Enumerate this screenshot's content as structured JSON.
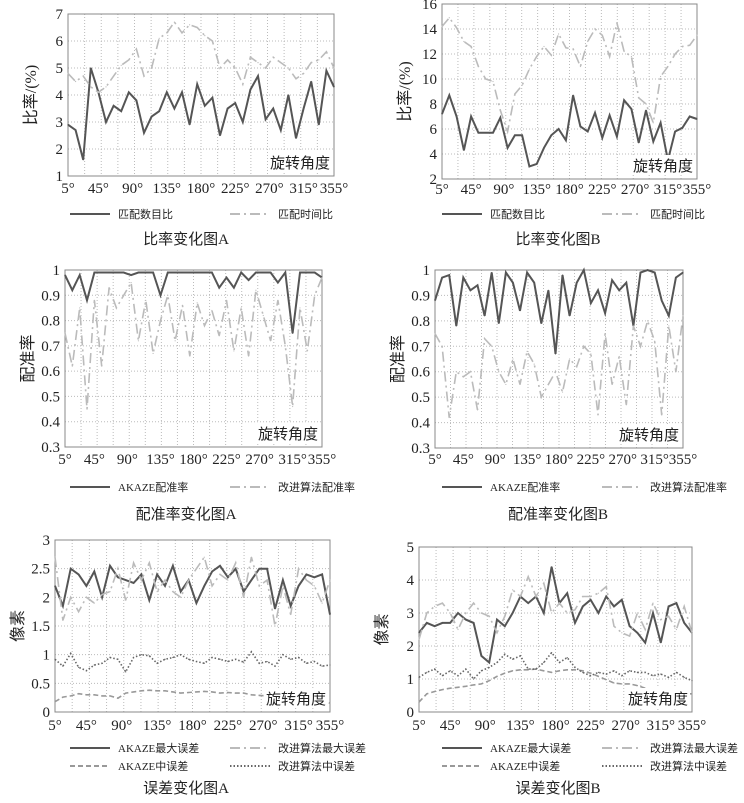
{
  "chart_data": [
    {
      "type": "line",
      "title": "比率变化图A",
      "ylabel": "比率/(%)",
      "annotation": "旋转角度",
      "ylim": [
        1,
        7
      ],
      "yticks": [
        "1",
        "2",
        "3",
        "4",
        "5",
        "6",
        "7"
      ],
      "xlim": [
        5,
        355
      ],
      "xticks": [
        {
          "v": 5,
          "label": "5°"
        },
        {
          "v": 45,
          "label": "45°"
        },
        {
          "v": 90,
          "label": "90°"
        },
        {
          "v": 135,
          "label": "135°"
        },
        {
          "v": 180,
          "label": "180°"
        },
        {
          "v": 225,
          "label": "225°"
        },
        {
          "v": 270,
          "label": "270°"
        },
        {
          "v": 315,
          "label": "315°"
        },
        {
          "v": 355,
          "label": "355°"
        }
      ],
      "x_step": 10,
      "grid": true,
      "legend_placement": "bottom",
      "series": [
        {
          "name": "匹配数目比",
          "style": "solid",
          "color": "#555555",
          "values": [
            2.9,
            2.7,
            1.6,
            5.0,
            4.1,
            3.0,
            3.6,
            3.4,
            4.1,
            3.8,
            2.6,
            3.2,
            3.4,
            4.1,
            3.5,
            4.1,
            2.9,
            4.4,
            3.6,
            3.9,
            2.5,
            3.5,
            3.7,
            3.0,
            4.2,
            4.7,
            3.1,
            3.5,
            2.7,
            4.0,
            2.4,
            3.5,
            4.5,
            2.9,
            4.9,
            4.3
          ]
        },
        {
          "name": "匹配时间比",
          "style": "dashdot",
          "color": "#bbbbbb",
          "values": [
            4.8,
            4.5,
            4.7,
            4.3,
            4.1,
            4.3,
            4.7,
            5.1,
            5.3,
            5.7,
            4.7,
            5.0,
            6.1,
            6.3,
            6.7,
            6.3,
            6.6,
            6.5,
            6.2,
            6.0,
            5.0,
            5.3,
            5.0,
            4.4,
            5.4,
            5.2,
            5.0,
            5.4,
            5.2,
            5.0,
            4.6,
            4.8,
            5.2,
            5.3,
            5.6,
            5.0
          ]
        }
      ]
    },
    {
      "type": "line",
      "title": "比率变化图B",
      "ylabel": "比率/(%)",
      "annotation": "旋转角度",
      "ylim": [
        2,
        16
      ],
      "yticks": [
        "2",
        "4",
        "6",
        "8",
        "10",
        "12",
        "14",
        "16"
      ],
      "xlim": [
        5,
        355
      ],
      "xticks": [
        {
          "v": 5,
          "label": "5°"
        },
        {
          "v": 45,
          "label": "45°"
        },
        {
          "v": 90,
          "label": "90°"
        },
        {
          "v": 135,
          "label": "135°"
        },
        {
          "v": 180,
          "label": "180°"
        },
        {
          "v": 225,
          "label": "225°"
        },
        {
          "v": 270,
          "label": "270°"
        },
        {
          "v": 315,
          "label": "315°"
        },
        {
          "v": 355,
          "label": "355°"
        }
      ],
      "x_step": 10,
      "grid": true,
      "legend_placement": "bottom",
      "series": [
        {
          "name": "匹配数目比",
          "style": "solid",
          "color": "#555555",
          "values": [
            7.2,
            8.7,
            7.0,
            4.3,
            7.0,
            5.7,
            5.7,
            5.7,
            6.9,
            4.5,
            5.5,
            5.5,
            3.0,
            3.2,
            4.5,
            5.5,
            6.0,
            5.1,
            8.7,
            6.2,
            5.8,
            7.3,
            5.3,
            7.1,
            5.4,
            8.3,
            7.6,
            4.9,
            7.5,
            5.0,
            6.5,
            3.5,
            5.8,
            6.1,
            7.0,
            6.8
          ]
        },
        {
          "name": "匹配时间比",
          "style": "dashdot",
          "color": "#bbbbbb",
          "values": [
            14.2,
            14.9,
            14.1,
            13.0,
            12.6,
            11.0,
            10.0,
            9.8,
            7.5,
            5.8,
            8.8,
            9.5,
            10.8,
            11.8,
            12.6,
            11.9,
            13.6,
            12.5,
            12.4,
            11.0,
            13.0,
            14.0,
            13.5,
            11.8,
            14.5,
            12.2,
            11.8,
            8.5,
            8.0,
            6.5,
            10.2,
            11.0,
            12.0,
            12.6,
            12.7,
            13.5
          ]
        }
      ]
    },
    {
      "type": "line",
      "title": "配准率变化图A",
      "ylabel": "配准率",
      "annotation": "旋转角度",
      "ylim": [
        0.3,
        1
      ],
      "yticks": [
        "0.3",
        "0.4",
        "0.5",
        "0.6",
        "0.7",
        "0.8",
        "0.9",
        "1"
      ],
      "xlim": [
        5,
        355
      ],
      "xticks": [
        {
          "v": 5,
          "label": "5°"
        },
        {
          "v": 45,
          "label": "45°"
        },
        {
          "v": 90,
          "label": "90°"
        },
        {
          "v": 135,
          "label": "135°"
        },
        {
          "v": 180,
          "label": "180°"
        },
        {
          "v": 225,
          "label": "225°"
        },
        {
          "v": 270,
          "label": "270°"
        },
        {
          "v": 315,
          "label": "315°"
        },
        {
          "v": 355,
          "label": "355°"
        }
      ],
      "x_step": 10,
      "grid": true,
      "legend_placement": "bottom",
      "series": [
        {
          "name": "AKAZE配准率",
          "style": "solid",
          "color": "#555555",
          "values": [
            0.98,
            0.92,
            0.98,
            0.88,
            0.99,
            0.99,
            0.99,
            0.99,
            0.99,
            0.98,
            0.99,
            0.99,
            0.99,
            0.9,
            0.99,
            0.99,
            0.99,
            0.99,
            0.99,
            0.99,
            0.99,
            0.93,
            0.97,
            0.93,
            0.99,
            0.96,
            0.99,
            0.99,
            0.99,
            0.95,
            0.99,
            0.75,
            0.99,
            0.99,
            0.99,
            0.97
          ]
        },
        {
          "name": "改进算法配准率",
          "style": "dashdot",
          "color": "#bbbbbb",
          "values": [
            0.75,
            0.62,
            0.85,
            0.45,
            0.88,
            0.62,
            0.93,
            0.85,
            0.9,
            0.95,
            0.72,
            0.88,
            0.67,
            0.8,
            0.9,
            0.72,
            0.86,
            0.66,
            0.87,
            0.78,
            0.84,
            0.74,
            0.88,
            0.68,
            0.85,
            0.66,
            0.92,
            0.82,
            0.72,
            0.88,
            0.7,
            0.46,
            0.85,
            0.68,
            0.9,
            0.97
          ]
        }
      ]
    },
    {
      "type": "line",
      "title": "配准率变化图B",
      "ylabel": "配准率",
      "annotation": "旋转角度",
      "ylim": [
        0.3,
        1
      ],
      "yticks": [
        "0.3",
        "0.4",
        "0.5",
        "0.6",
        "0.7",
        "0.8",
        "0.9",
        "1"
      ],
      "xlim": [
        5,
        355
      ],
      "xticks": [
        {
          "v": 5,
          "label": "5°"
        },
        {
          "v": 45,
          "label": "45°"
        },
        {
          "v": 90,
          "label": "90°"
        },
        {
          "v": 135,
          "label": "135°"
        },
        {
          "v": 180,
          "label": "180°"
        },
        {
          "v": 225,
          "label": "225°"
        },
        {
          "v": 270,
          "label": "270°"
        },
        {
          "v": 315,
          "label": "315°"
        },
        {
          "v": 355,
          "label": "355°"
        }
      ],
      "x_step": 10,
      "grid": true,
      "legend_placement": "bottom",
      "series": [
        {
          "name": "AKAZE配准率",
          "style": "solid",
          "color": "#555555",
          "values": [
            0.88,
            0.97,
            0.98,
            0.78,
            0.97,
            0.92,
            0.94,
            0.82,
            0.99,
            0.79,
            0.99,
            0.95,
            0.84,
            0.99,
            0.95,
            0.79,
            0.92,
            0.67,
            0.98,
            0.82,
            0.95,
            1.0,
            0.87,
            0.92,
            0.83,
            0.96,
            0.92,
            0.95,
            0.78,
            0.99,
            1.0,
            0.99,
            0.88,
            0.82,
            0.97,
            0.99
          ]
        },
        {
          "name": "改进算法配准率",
          "style": "dashdot",
          "color": "#bbbbbb",
          "values": [
            0.75,
            0.7,
            0.42,
            0.6,
            0.58,
            0.6,
            0.45,
            0.73,
            0.7,
            0.6,
            0.55,
            0.65,
            0.55,
            0.68,
            0.63,
            0.5,
            0.55,
            0.6,
            0.52,
            0.65,
            0.62,
            0.7,
            0.67,
            0.43,
            0.75,
            0.55,
            0.66,
            0.47,
            0.78,
            0.7,
            0.8,
            0.72,
            0.43,
            0.78,
            0.6,
            0.82
          ]
        }
      ]
    },
    {
      "type": "line",
      "title": "误差变化图A",
      "ylabel": "像素",
      "annotation": "旋转角度",
      "ylim": [
        0,
        3
      ],
      "yticks": [
        "0",
        "0.5",
        "1",
        "1.5",
        "2",
        "2.5",
        "3"
      ],
      "xlim": [
        5,
        355
      ],
      "xticks": [
        {
          "v": 5,
          "label": "5°"
        },
        {
          "v": 45,
          "label": "45°"
        },
        {
          "v": 90,
          "label": "90°"
        },
        {
          "v": 135,
          "label": "135°"
        },
        {
          "v": 180,
          "label": "180°"
        },
        {
          "v": 225,
          "label": "225°"
        },
        {
          "v": 270,
          "label": "270°"
        },
        {
          "v": 315,
          "label": "315°"
        },
        {
          "v": 355,
          "label": "355°"
        }
      ],
      "x_step": 10,
      "grid": true,
      "legend_placement": "bottom",
      "series": [
        {
          "name": "AKAZE最大误差",
          "style": "solid",
          "color": "#555555",
          "values": [
            2.2,
            1.85,
            2.5,
            2.4,
            2.2,
            2.45,
            2.0,
            2.55,
            2.35,
            2.3,
            2.25,
            2.4,
            1.95,
            2.4,
            2.2,
            2.55,
            2.1,
            2.3,
            1.9,
            2.2,
            2.45,
            2.55,
            2.35,
            2.5,
            2.1,
            2.3,
            2.5,
            2.5,
            1.8,
            2.3,
            1.85,
            2.2,
            2.4,
            2.35,
            2.4,
            1.7
          ]
        },
        {
          "name": "改进算法最大误差",
          "style": "dashdot",
          "color": "#bbbbbb",
          "values": [
            2.7,
            1.6,
            2.0,
            1.75,
            2.0,
            1.9,
            2.05,
            2.1,
            2.5,
            1.95,
            2.6,
            2.3,
            2.6,
            2.1,
            2.3,
            2.1,
            2.0,
            2.3,
            2.5,
            2.7,
            2.2,
            2.4,
            2.3,
            2.6,
            2.0,
            2.7,
            2.2,
            2.3,
            1.5,
            2.2,
            1.7,
            2.5,
            2.3,
            2.2,
            1.9,
            2.3
          ]
        },
        {
          "name": "AKAZE中误差",
          "style": "dashed",
          "color": "#999999",
          "values": [
            0.18,
            0.26,
            0.28,
            0.32,
            0.3,
            0.3,
            0.28,
            0.28,
            0.24,
            0.33,
            0.35,
            0.37,
            0.38,
            0.37,
            0.37,
            0.35,
            0.33,
            0.34,
            0.35,
            0.36,
            0.35,
            0.33,
            0.34,
            0.33,
            0.33,
            0.3,
            0.29,
            0.28,
            0.27,
            0.28,
            0.28,
            0.27,
            0.27,
            0.26,
            0.25,
            0.15
          ]
        },
        {
          "name": "改进算法中误差",
          "style": "dotted",
          "color": "#666666",
          "values": [
            0.92,
            0.8,
            1.02,
            0.78,
            0.72,
            0.82,
            0.85,
            0.95,
            0.92,
            0.7,
            0.95,
            1.0,
            0.98,
            0.85,
            0.92,
            0.95,
            1.0,
            0.92,
            0.88,
            0.85,
            0.95,
            0.92,
            0.88,
            0.92,
            0.87,
            1.05,
            0.85,
            0.88,
            0.8,
            1.0,
            0.92,
            0.95,
            0.85,
            0.88,
            0.8,
            0.82
          ]
        }
      ]
    },
    {
      "type": "line",
      "title": "误差变化图B",
      "ylabel": "像素",
      "annotation": "旋转角度",
      "ylim": [
        0,
        5
      ],
      "yticks": [
        "0",
        "1",
        "2",
        "3",
        "4",
        "5"
      ],
      "xlim": [
        5,
        355
      ],
      "xticks": [
        {
          "v": 5,
          "label": "5°"
        },
        {
          "v": 45,
          "label": "45°"
        },
        {
          "v": 90,
          "label": "90°"
        },
        {
          "v": 135,
          "label": "135°"
        },
        {
          "v": 180,
          "label": "180°"
        },
        {
          "v": 225,
          "label": "225°"
        },
        {
          "v": 270,
          "label": "270°"
        },
        {
          "v": 315,
          "label": "315°"
        },
        {
          "v": 355,
          "label": "355°"
        }
      ],
      "x_step": 10,
      "grid": true,
      "legend_placement": "bottom",
      "series": [
        {
          "name": "AKAZE最大误差",
          "style": "solid",
          "color": "#555555",
          "values": [
            2.4,
            2.7,
            2.6,
            2.7,
            2.7,
            3.0,
            2.8,
            2.7,
            1.7,
            1.5,
            2.8,
            2.6,
            3.0,
            3.5,
            3.3,
            3.5,
            3.0,
            4.4,
            3.3,
            3.6,
            2.7,
            3.2,
            3.4,
            3.0,
            3.5,
            3.2,
            3.4,
            2.6,
            2.4,
            2.1,
            3.0,
            2.1,
            3.2,
            3.3,
            2.7,
            2.4
          ]
        },
        {
          "name": "改进算法最大误差",
          "style": "dashdot",
          "color": "#bbbbbb",
          "values": [
            2.2,
            3.0,
            3.2,
            3.3,
            3.0,
            2.5,
            3.0,
            3.3,
            3.0,
            2.9,
            2.4,
            2.9,
            3.7,
            3.5,
            4.1,
            3.5,
            3.9,
            3.0,
            3.3,
            3.0,
            3.1,
            3.5,
            3.5,
            3.6,
            3.8,
            2.6,
            2.4,
            2.3,
            3.0,
            2.5,
            3.3,
            2.8,
            2.9,
            2.5,
            3.2,
            2.4
          ]
        },
        {
          "name": "AKAZE中误差",
          "style": "dashed",
          "color": "#999999",
          "values": [
            0.3,
            0.55,
            0.62,
            0.68,
            0.72,
            0.75,
            0.78,
            0.82,
            0.85,
            0.95,
            1.08,
            1.18,
            1.25,
            1.28,
            1.28,
            1.3,
            1.25,
            1.2,
            1.25,
            1.28,
            1.28,
            1.25,
            1.18,
            1.08,
            0.98,
            0.88,
            0.85,
            0.85,
            0.8,
            0.72,
            0.62,
            0.55,
            0.55,
            0.55,
            0.55,
            0.55
          ]
        },
        {
          "name": "改进算法中误差",
          "style": "dotted",
          "color": "#666666",
          "values": [
            1.05,
            1.2,
            1.3,
            1.1,
            1.25,
            1.1,
            1.3,
            1.0,
            1.25,
            1.35,
            1.5,
            1.75,
            1.6,
            1.7,
            1.3,
            1.3,
            1.5,
            1.8,
            1.5,
            1.65,
            1.35,
            1.2,
            1.1,
            1.2,
            1.15,
            1.25,
            1.1,
            1.25,
            1.2,
            1.2,
            1.1,
            1.15,
            1.05,
            1.2,
            1.05,
            0.95
          ]
        }
      ]
    }
  ]
}
